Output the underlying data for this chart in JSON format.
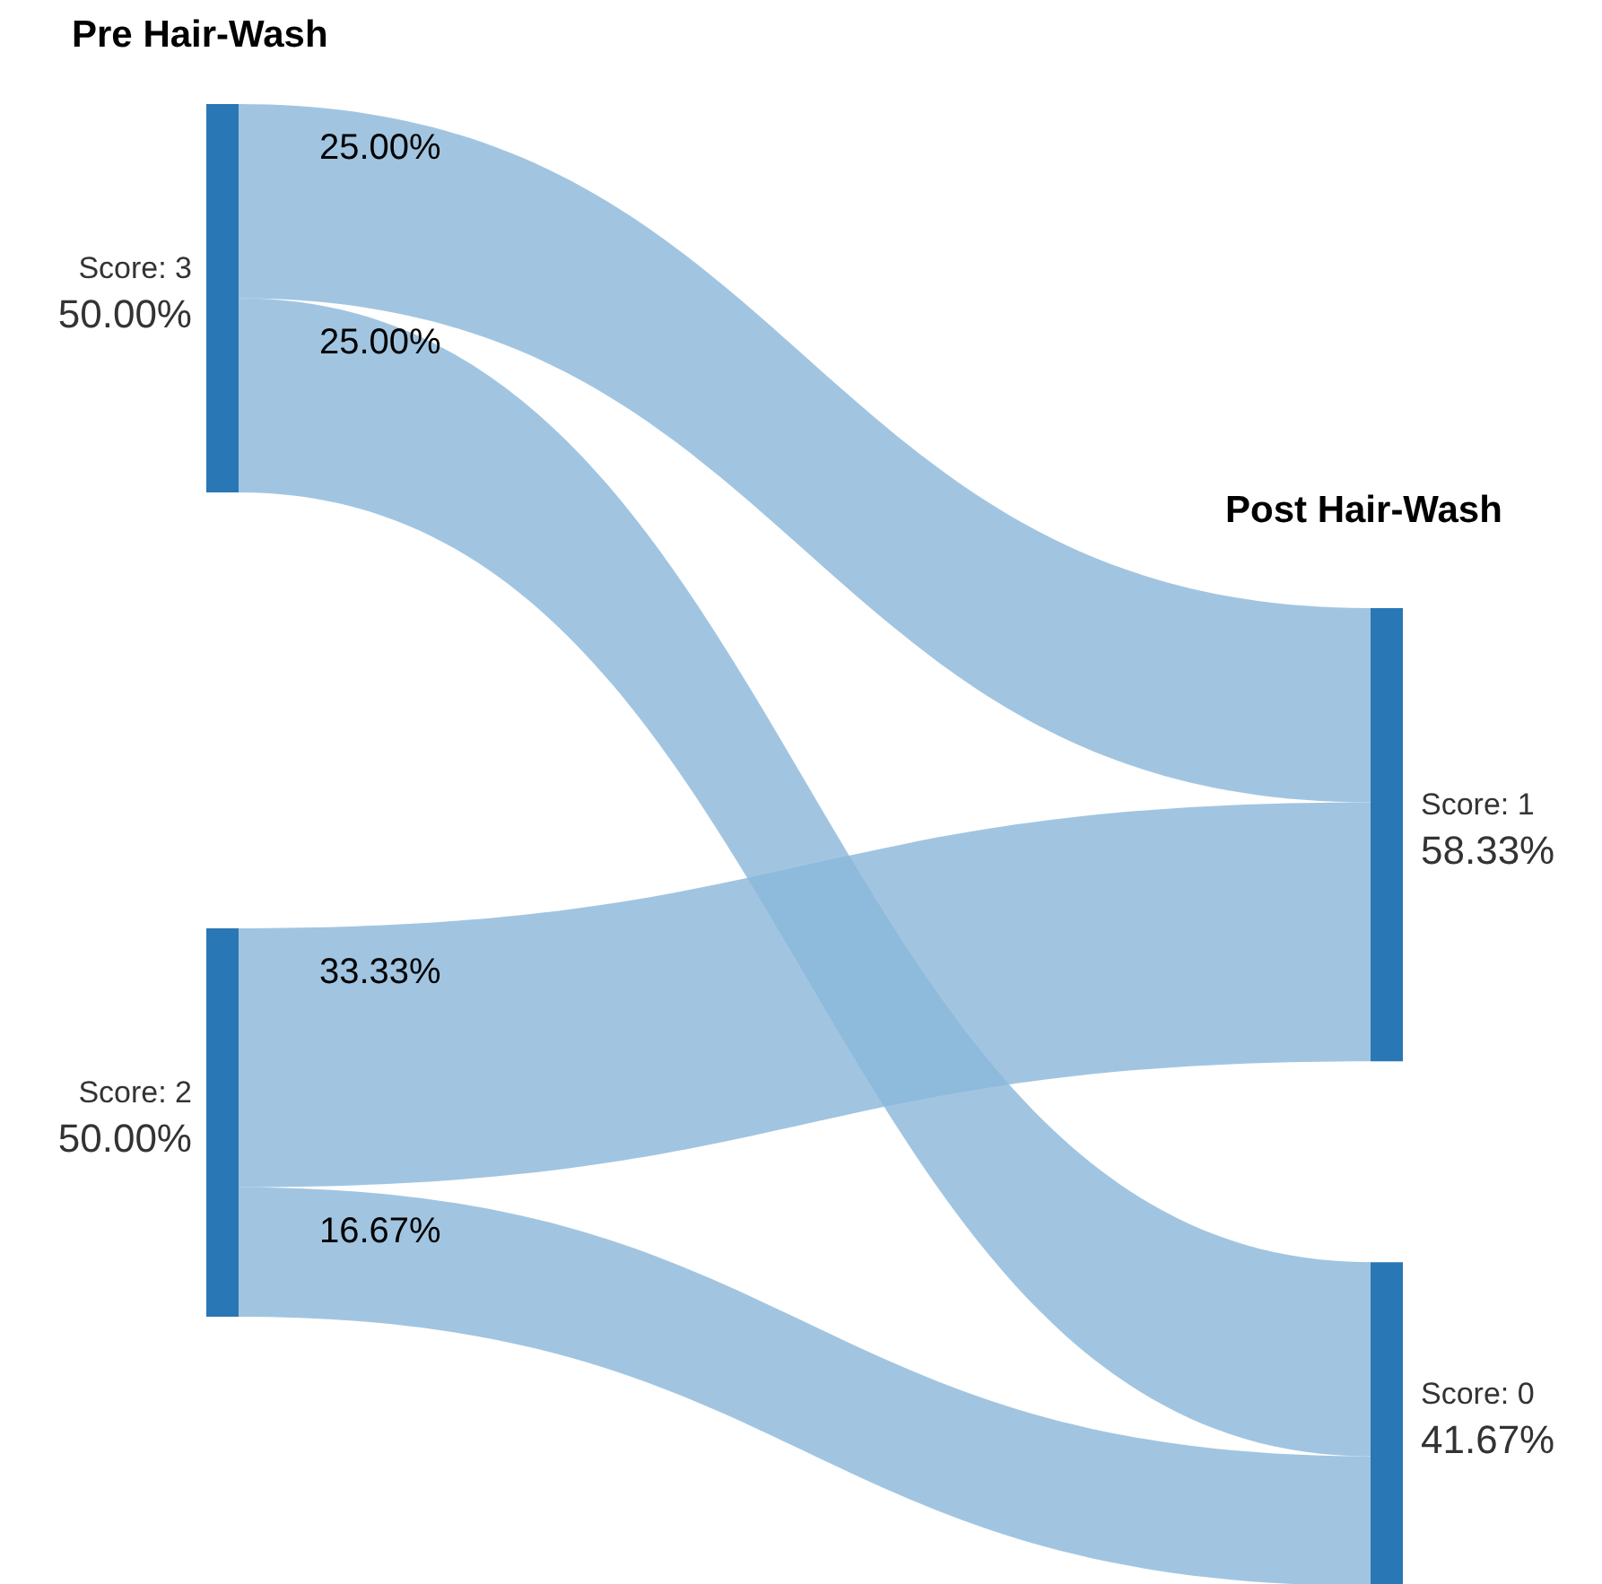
{
  "chart_data": {
    "type": "other",
    "annotations": [
      "Pre Hair-Wash",
      "Post Hair-Wash"
    ],
    "categories": [
      "Score: 3",
      "Score: 2",
      "Score: 1",
      "Score: 0"
    ],
    "values": [
      50.0,
      50.0,
      58.33,
      41.67
    ],
    "value_labels": [
      "50.00%",
      "50.00%",
      "58.33%",
      "41.67%"
    ],
    "colors": [
      "#2a77b5",
      "#2a77b5",
      "#2a77b5",
      "#2a77b5"
    ],
    "series": [
      {
        "color": "#8ab7d9",
        "values": [
          25.0,
          33.33,
          null,
          null
        ],
        "value_labels": [
          "25.00%",
          "33.33%",
          null,
          null
        ]
      },
      {
        "color": "#8ab7d9",
        "values": [
          25.0,
          16.67,
          null,
          null
        ],
        "value_labels": [
          "25.00%",
          "16.67%",
          null,
          null
        ]
      }
    ]
  }
}
